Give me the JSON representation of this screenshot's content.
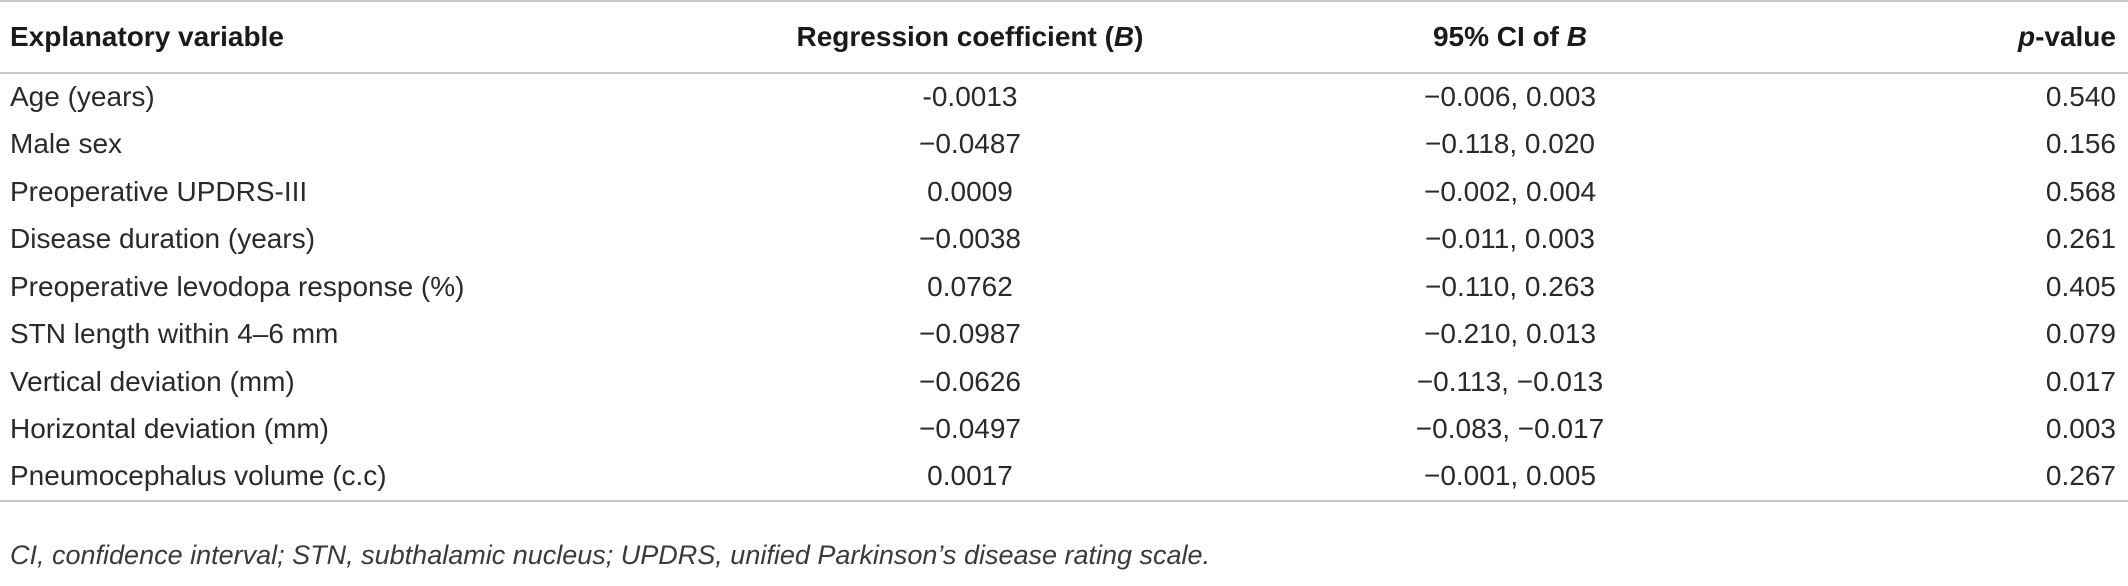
{
  "table": {
    "headers": {
      "col1": "Explanatory variable",
      "col2_prefix": "Regression coefficient (",
      "col2_italic": "B",
      "col2_suffix": ")",
      "col3_prefix": "95% CI of ",
      "col3_italic": "B",
      "col4_italic": "p",
      "col4_suffix": "-value"
    },
    "rows": [
      {
        "variable": "Age (years)",
        "coefficient": "-0.0013",
        "ci": "−0.006, 0.003",
        "p": "0.540"
      },
      {
        "variable": "Male sex",
        "coefficient": "−0.0487",
        "ci": "−0.118, 0.020",
        "p": "0.156"
      },
      {
        "variable": "Preoperative UPDRS-III",
        "coefficient": "0.0009",
        "ci": "−0.002, 0.004",
        "p": "0.568"
      },
      {
        "variable": "Disease duration (years)",
        "coefficient": "−0.0038",
        "ci": "−0.011, 0.003",
        "p": "0.261"
      },
      {
        "variable": "Preoperative levodopa response (%)",
        "coefficient": "0.0762",
        "ci": "−0.110, 0.263",
        "p": "0.405"
      },
      {
        "variable": "STN length within 4–6 mm",
        "coefficient": "−0.0987",
        "ci": "−0.210, 0.013",
        "p": "0.079"
      },
      {
        "variable": "Vertical deviation (mm)",
        "coefficient": "−0.0626",
        "ci": "−0.113, −0.013",
        "p": "0.017"
      },
      {
        "variable": "Horizontal deviation (mm)",
        "coefficient": "−0.0497",
        "ci": "−0.083, −0.017",
        "p": "0.003"
      },
      {
        "variable": "Pneumocephalus volume (c.c)",
        "coefficient": "0.0017",
        "ci": "−0.001, 0.005",
        "p": "0.267"
      }
    ]
  },
  "footnote": "CI, confidence interval; STN, subthalamic nucleus; UPDRS, unified Parkinson’s disease rating scale."
}
